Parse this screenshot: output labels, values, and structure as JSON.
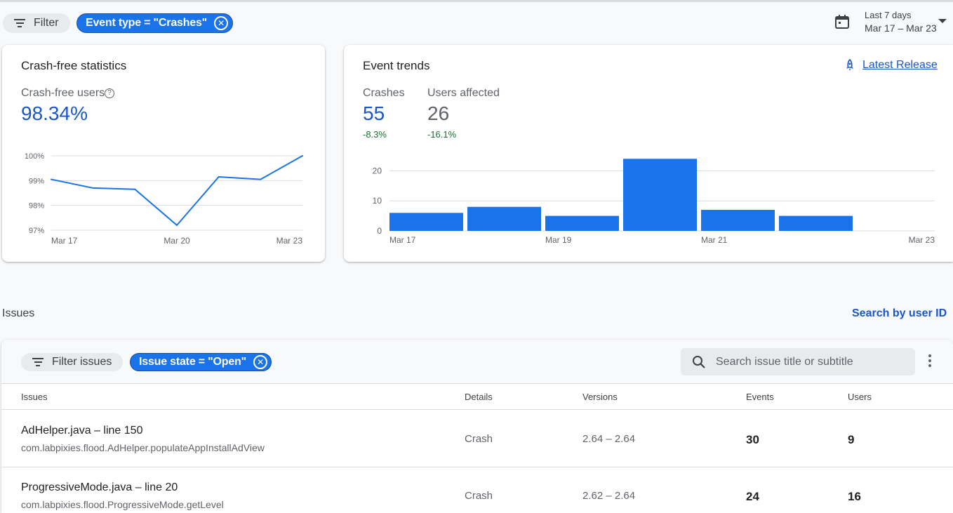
{
  "filters": {
    "filter_label": "Filter",
    "event_type_chip": "Event type = \"Crashes\""
  },
  "date_range": {
    "label": "Last 7 days",
    "range": "Mar 17 – Mar 23"
  },
  "crash_free": {
    "title": "Crash-free statistics",
    "metric_label": "Crash-free users",
    "value": "98.34%"
  },
  "event_trends": {
    "title": "Event trends",
    "latest_release_link": "Latest Release",
    "crashes_label": "Crashes",
    "crashes_value": "55",
    "crashes_delta": "-8.3%",
    "users_label": "Users affected",
    "users_value": "26",
    "users_delta": "-16.1%"
  },
  "issues_section": {
    "title": "Issues",
    "search_by_user": "Search by user ID",
    "filter_issues_label": "Filter issues",
    "issue_state_chip": "Issue state = \"Open\"",
    "search_placeholder": "Search issue title or subtitle",
    "columns": [
      "Issues",
      "Details",
      "Versions",
      "Events",
      "Users"
    ],
    "rows": [
      {
        "file": "AdHelper.java",
        "line": " – line 150",
        "subtitle": "com.labpixies.flood.AdHelper.populateAppInstallAdView",
        "details": "Crash",
        "versions": "2.64 – 2.64",
        "events": "30",
        "users": "9"
      },
      {
        "file": "ProgressiveMode.java",
        "line": " – line 20",
        "subtitle": "com.labpixies.flood.ProgressiveMode.getLevel",
        "details": "Crash",
        "versions": "2.62 – 2.64",
        "events": "24",
        "users": "16"
      }
    ]
  },
  "chart_data": [
    {
      "type": "line",
      "title": "",
      "x": [
        "Mar 17",
        "Mar 18",
        "Mar 19",
        "Mar 20",
        "Mar 21",
        "Mar 22",
        "Mar 23"
      ],
      "values": [
        99.05,
        98.7,
        98.65,
        97.2,
        99.15,
        99.05,
        100.0
      ],
      "x_tick_labels": [
        "Mar 17",
        "Mar 20",
        "Mar 23"
      ],
      "y_tick_labels": [
        "100%",
        "99%",
        "98%",
        "97%"
      ],
      "ylim": [
        97,
        100
      ],
      "grid": true,
      "color": "#1a73e8"
    },
    {
      "type": "bar",
      "title": "",
      "categories": [
        "Mar 17",
        "Mar 18",
        "Mar 19",
        "Mar 20",
        "Mar 21",
        "Mar 22",
        "Mar 23"
      ],
      "values": [
        6,
        8,
        5,
        24,
        7,
        5,
        0
      ],
      "x_tick_labels": [
        "Mar 17",
        "Mar 19",
        "Mar 21",
        "Mar 23"
      ],
      "y_tick_labels": [
        "20",
        "10",
        "0"
      ],
      "ylim": [
        0,
        25
      ],
      "grid": true,
      "color": "#1a73e8"
    }
  ]
}
